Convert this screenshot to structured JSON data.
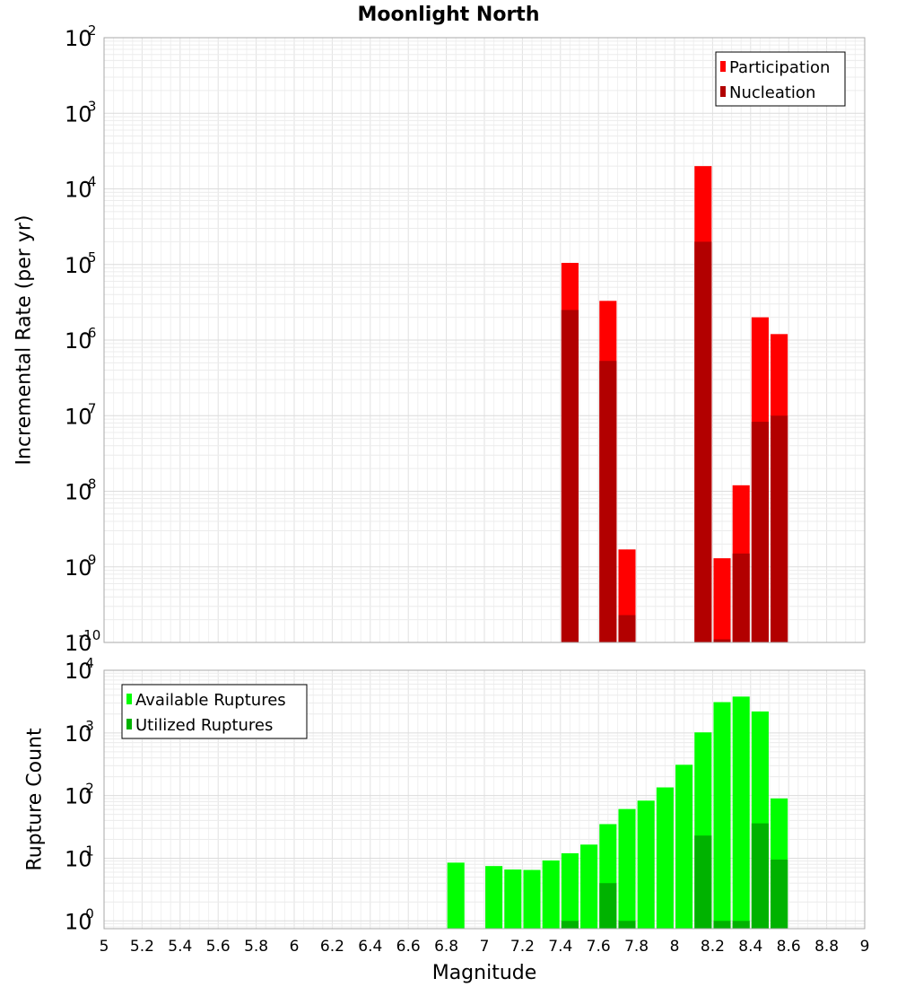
{
  "chart_data": [
    {
      "type": "bar",
      "title": "Moonlight North",
      "ylabel": "Incremental Rate (per yr)",
      "xlabel": "",
      "xlim": [
        5,
        9
      ],
      "yscale": "log",
      "ylim": [
        1e-10,
        0.01
      ],
      "ytick_labels": [
        {
          "base": "10",
          "exp": "-10"
        },
        {
          "base": "10",
          "exp": "-9"
        },
        {
          "base": "10",
          "exp": "-8"
        },
        {
          "base": "10",
          "exp": "-7"
        },
        {
          "base": "10",
          "exp": "-6"
        },
        {
          "base": "10",
          "exp": "-5"
        },
        {
          "base": "10",
          "exp": "-4"
        },
        {
          "base": "10",
          "exp": "-3"
        },
        {
          "base": "10",
          "exp": "-2"
        }
      ],
      "grid": true,
      "legend": "top-right",
      "bar_width": 0.09,
      "series": [
        {
          "name": "Participation",
          "color": "#ff0000",
          "x": [
            7.45,
            7.65,
            7.75,
            8.15,
            8.25,
            8.35,
            8.45,
            8.55
          ],
          "values": [
            1.05e-05,
            3.3e-06,
            1.7e-09,
            0.0002,
            1.3e-09,
            1.2e-08,
            2e-06,
            1.2e-06
          ]
        },
        {
          "name": "Nucleation",
          "color": "#b20000",
          "x": [
            7.45,
            7.65,
            7.75,
            8.15,
            8.25,
            8.35,
            8.45,
            8.55
          ],
          "values": [
            2.5e-06,
            5.3e-07,
            2.3e-10,
            2e-05,
            1.1e-10,
            1.5e-09,
            8.3e-08,
            1e-07
          ]
        }
      ]
    },
    {
      "type": "bar",
      "title": "",
      "ylabel": "Rupture Count",
      "xlabel": "Magnitude",
      "xlim": [
        5,
        9
      ],
      "yscale": "log",
      "ylim": [
        0.75,
        10000
      ],
      "ytick_labels": [
        {
          "base": "10",
          "exp": "0"
        },
        {
          "base": "10",
          "exp": "1"
        },
        {
          "base": "10",
          "exp": "2"
        },
        {
          "base": "10",
          "exp": "3"
        },
        {
          "base": "10",
          "exp": "4"
        }
      ],
      "xticks": [
        "5",
        "5.2",
        "5.4",
        "5.6",
        "5.8",
        "6",
        "6.2",
        "6.4",
        "6.6",
        "6.8",
        "7",
        "7.2",
        "7.4",
        "7.6",
        "7.8",
        "8",
        "8.2",
        "8.4",
        "8.6",
        "8.8",
        "9"
      ],
      "grid": true,
      "legend": "top-left",
      "bar_width": 0.09,
      "series": [
        {
          "name": "Available Ruptures",
          "color": "#00ff00",
          "x": [
            6.85,
            7.05,
            7.15,
            7.25,
            7.35,
            7.45,
            7.55,
            7.65,
            7.75,
            7.85,
            7.95,
            8.05,
            8.15,
            8.25,
            8.35,
            8.45,
            8.55
          ],
          "values": [
            8.5,
            7.5,
            6.6,
            6.5,
            9.2,
            12,
            16.5,
            35,
            61,
            83,
            135,
            310,
            1020,
            3100,
            3800,
            2200,
            90
          ]
        },
        {
          "name": "Utilized Ruptures",
          "color": "#00b200",
          "x": [
            7.45,
            7.65,
            7.75,
            8.15,
            8.25,
            8.35,
            8.45,
            8.55
          ],
          "values": [
            1,
            4,
            1,
            23,
            1,
            1,
            36,
            9.5
          ]
        }
      ]
    }
  ]
}
